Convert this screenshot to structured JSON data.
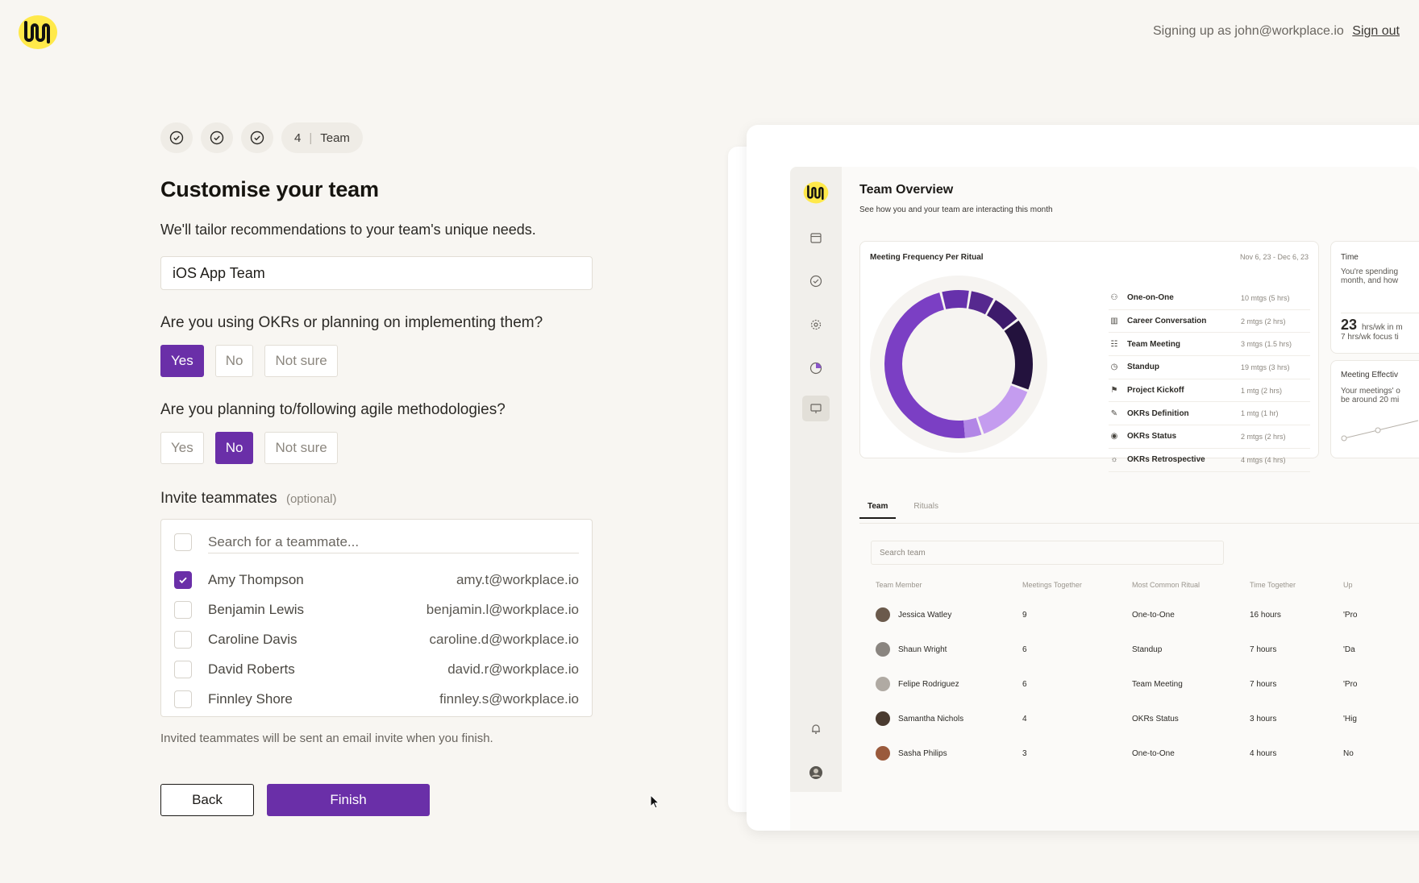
{
  "header": {
    "signing_text": "Signing up as john@workplace.io",
    "signout_label": "Sign out"
  },
  "steps": {
    "current_number": "4",
    "current_label": "Team"
  },
  "form": {
    "title": "Customise your team",
    "subtitle": "We'll tailor recommendations to your team's unique needs.",
    "team_name_value": "iOS App Team",
    "q_okr": "Are you using OKRs or planning on implementing them?",
    "q_okr_options": [
      "Yes",
      "No",
      "Not sure"
    ],
    "q_okr_selected": "Yes",
    "q_agile": "Are you planning to/following agile methodologies?",
    "q_agile_options": [
      "Yes",
      "No",
      "Not sure"
    ],
    "q_agile_selected": "No",
    "invite_label": "Invite teammates",
    "invite_optional": "(optional)",
    "search_placeholder": "Search for a teammate...",
    "teammates": [
      {
        "name": "Amy Thompson",
        "email": "amy.t@workplace.io",
        "checked": true
      },
      {
        "name": "Benjamin Lewis",
        "email": "benjamin.l@workplace.io",
        "checked": false
      },
      {
        "name": "Caroline Davis",
        "email": "caroline.d@workplace.io",
        "checked": false
      },
      {
        "name": "David Roberts",
        "email": "david.r@workplace.io",
        "checked": false
      },
      {
        "name": "Finnley Shore",
        "email": "finnley.s@workplace.io",
        "checked": false
      }
    ],
    "hint": "Invited teammates will be sent an email invite when you finish.",
    "back_label": "Back",
    "finish_label": "Finish"
  },
  "preview": {
    "title": "Team Overview",
    "subtitle": "See how you and your team are interacting this month",
    "frequency_card": {
      "title": "Meeting Frequency Per Ritual",
      "date_range": "Nov 6, 23 - Dec 6, 23",
      "rituals": [
        {
          "name": "One-on-One",
          "value": "10 mtgs (5 hrs)",
          "icon": "people-icon"
        },
        {
          "name": "Career Conversation",
          "value": "2 mtgs (2 hrs)",
          "icon": "chart-icon"
        },
        {
          "name": "Team Meeting",
          "value": "3 mtgs (1.5 hrs)",
          "icon": "group-icon"
        },
        {
          "name": "Standup",
          "value": "19 mtgs (3 hrs)",
          "icon": "clock-icon"
        },
        {
          "name": "Project Kickoff",
          "value": "1 mtg (2 hrs)",
          "icon": "flag-icon"
        },
        {
          "name": "OKRs Definition",
          "value": "1 mtg (1 hr)",
          "icon": "pen-icon"
        },
        {
          "name": "OKRs Status",
          "value": "2 mtgs (2 hrs)",
          "icon": "eye-icon"
        },
        {
          "name": "OKRs Retrospective",
          "value": "4 mtgs (4 hrs)",
          "icon": "sun-icon"
        }
      ]
    },
    "time_card": {
      "title": "Time",
      "text1": "You're spending",
      "text2": "month, and how",
      "big_number": "23",
      "small1": "hrs/wk in m",
      "small2": "7 hrs/wk focus ti"
    },
    "effect_card": {
      "title": "Meeting Effectiv",
      "text1": "Your meetings' o",
      "text2": "be around 20 mi"
    },
    "tabs": [
      "Team",
      "Rituals"
    ],
    "search_placeholder": "Search team",
    "columns": [
      "Team Member",
      "Meetings Together",
      "Most Common Ritual",
      "Time Together",
      "Up"
    ],
    "rows": [
      {
        "name": "Jessica Watley",
        "meetings": "9",
        "ritual": "One-to-One",
        "time": "16 hours",
        "extra": "'Pro"
      },
      {
        "name": "Shaun Wright",
        "meetings": "6",
        "ritual": "Standup",
        "time": "7 hours",
        "extra": "'Da"
      },
      {
        "name": "Felipe Rodriguez",
        "meetings": "6",
        "ritual": "Team Meeting",
        "time": "7 hours",
        "extra": "'Pro"
      },
      {
        "name": "Samantha Nichols",
        "meetings": "4",
        "ritual": "OKRs Status",
        "time": "3 hours",
        "extra": "'Hig"
      },
      {
        "name": "Sasha Philips",
        "meetings": "3",
        "ritual": "One-to-One",
        "time": "4 hours",
        "extra": "No"
      }
    ],
    "donut_colors": [
      "#7b3fc4",
      "#5b2a96",
      "#3d1a6b",
      "#1f0f3a",
      "#b98ae6",
      "#a06ad9"
    ]
  }
}
